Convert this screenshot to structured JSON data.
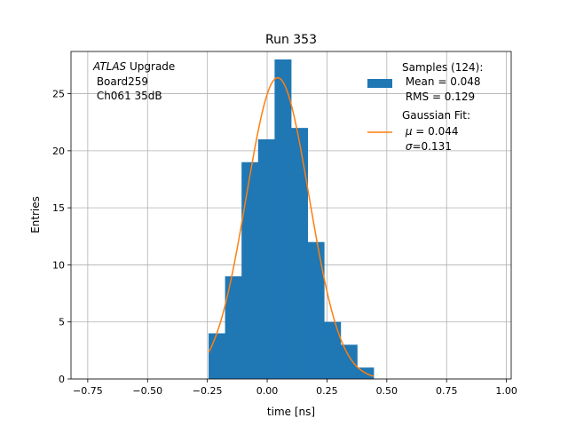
{
  "chart_data": {
    "type": "bar",
    "title": "Run 353",
    "xlabel": "time [ns]",
    "ylabel": "Entries",
    "xlim": [
      -0.82,
      1.02
    ],
    "ylim": [
      0,
      28.7
    ],
    "grid": true,
    "xticks": [
      -0.75,
      -0.5,
      -0.25,
      0.0,
      0.25,
      0.5,
      0.75,
      1.0
    ],
    "xtick_labels": [
      "−0.75",
      "−0.50",
      "−0.25",
      "0.00",
      "0.25",
      "0.50",
      "0.75",
      "1.00"
    ],
    "yticks": [
      0,
      5,
      10,
      15,
      20,
      25
    ],
    "ytick_labels": [
      "0",
      "5",
      "10",
      "15",
      "20",
      "25"
    ],
    "bin_edges": [
      -0.245,
      -0.176,
      -0.107,
      -0.038,
      0.031,
      0.1,
      0.169,
      0.238,
      0.307,
      0.376,
      0.445
    ],
    "hist_values": [
      4,
      9,
      19,
      21,
      28,
      22,
      12,
      5,
      3,
      1
    ],
    "bar_color": "#1f77b4",
    "fit_color": "#ff7f0e",
    "fit": {
      "function": "gaussian",
      "mu": 0.044,
      "sigma": 0.131,
      "peak": 26.4,
      "x_range": [
        -0.245,
        0.445
      ]
    },
    "series": [
      {
        "name": "Samples (124):\n Mean = 0.048\n RMS = 0.129",
        "kind": "histogram"
      },
      {
        "name": "Gaussian Fit:\n μ = 0.044\n σ=0.131",
        "kind": "line"
      }
    ],
    "legend_position": "top-right",
    "annotation": {
      "italic_part": "ATLAS",
      "rest_line1": " Upgrade",
      "line2": " Board259",
      "line3": " Ch061 35dB"
    },
    "legend": {
      "samples_line1": "Samples (124):",
      "samples_line2": " Mean = 0.048",
      "samples_line3": " RMS = 0.129",
      "fit_line1": "Gaussian Fit:",
      "fit_line2_symbol": "μ",
      "fit_line2_rest": " = 0.044",
      "fit_line3_symbol": "σ",
      "fit_line3_rest": "=0.131"
    }
  }
}
